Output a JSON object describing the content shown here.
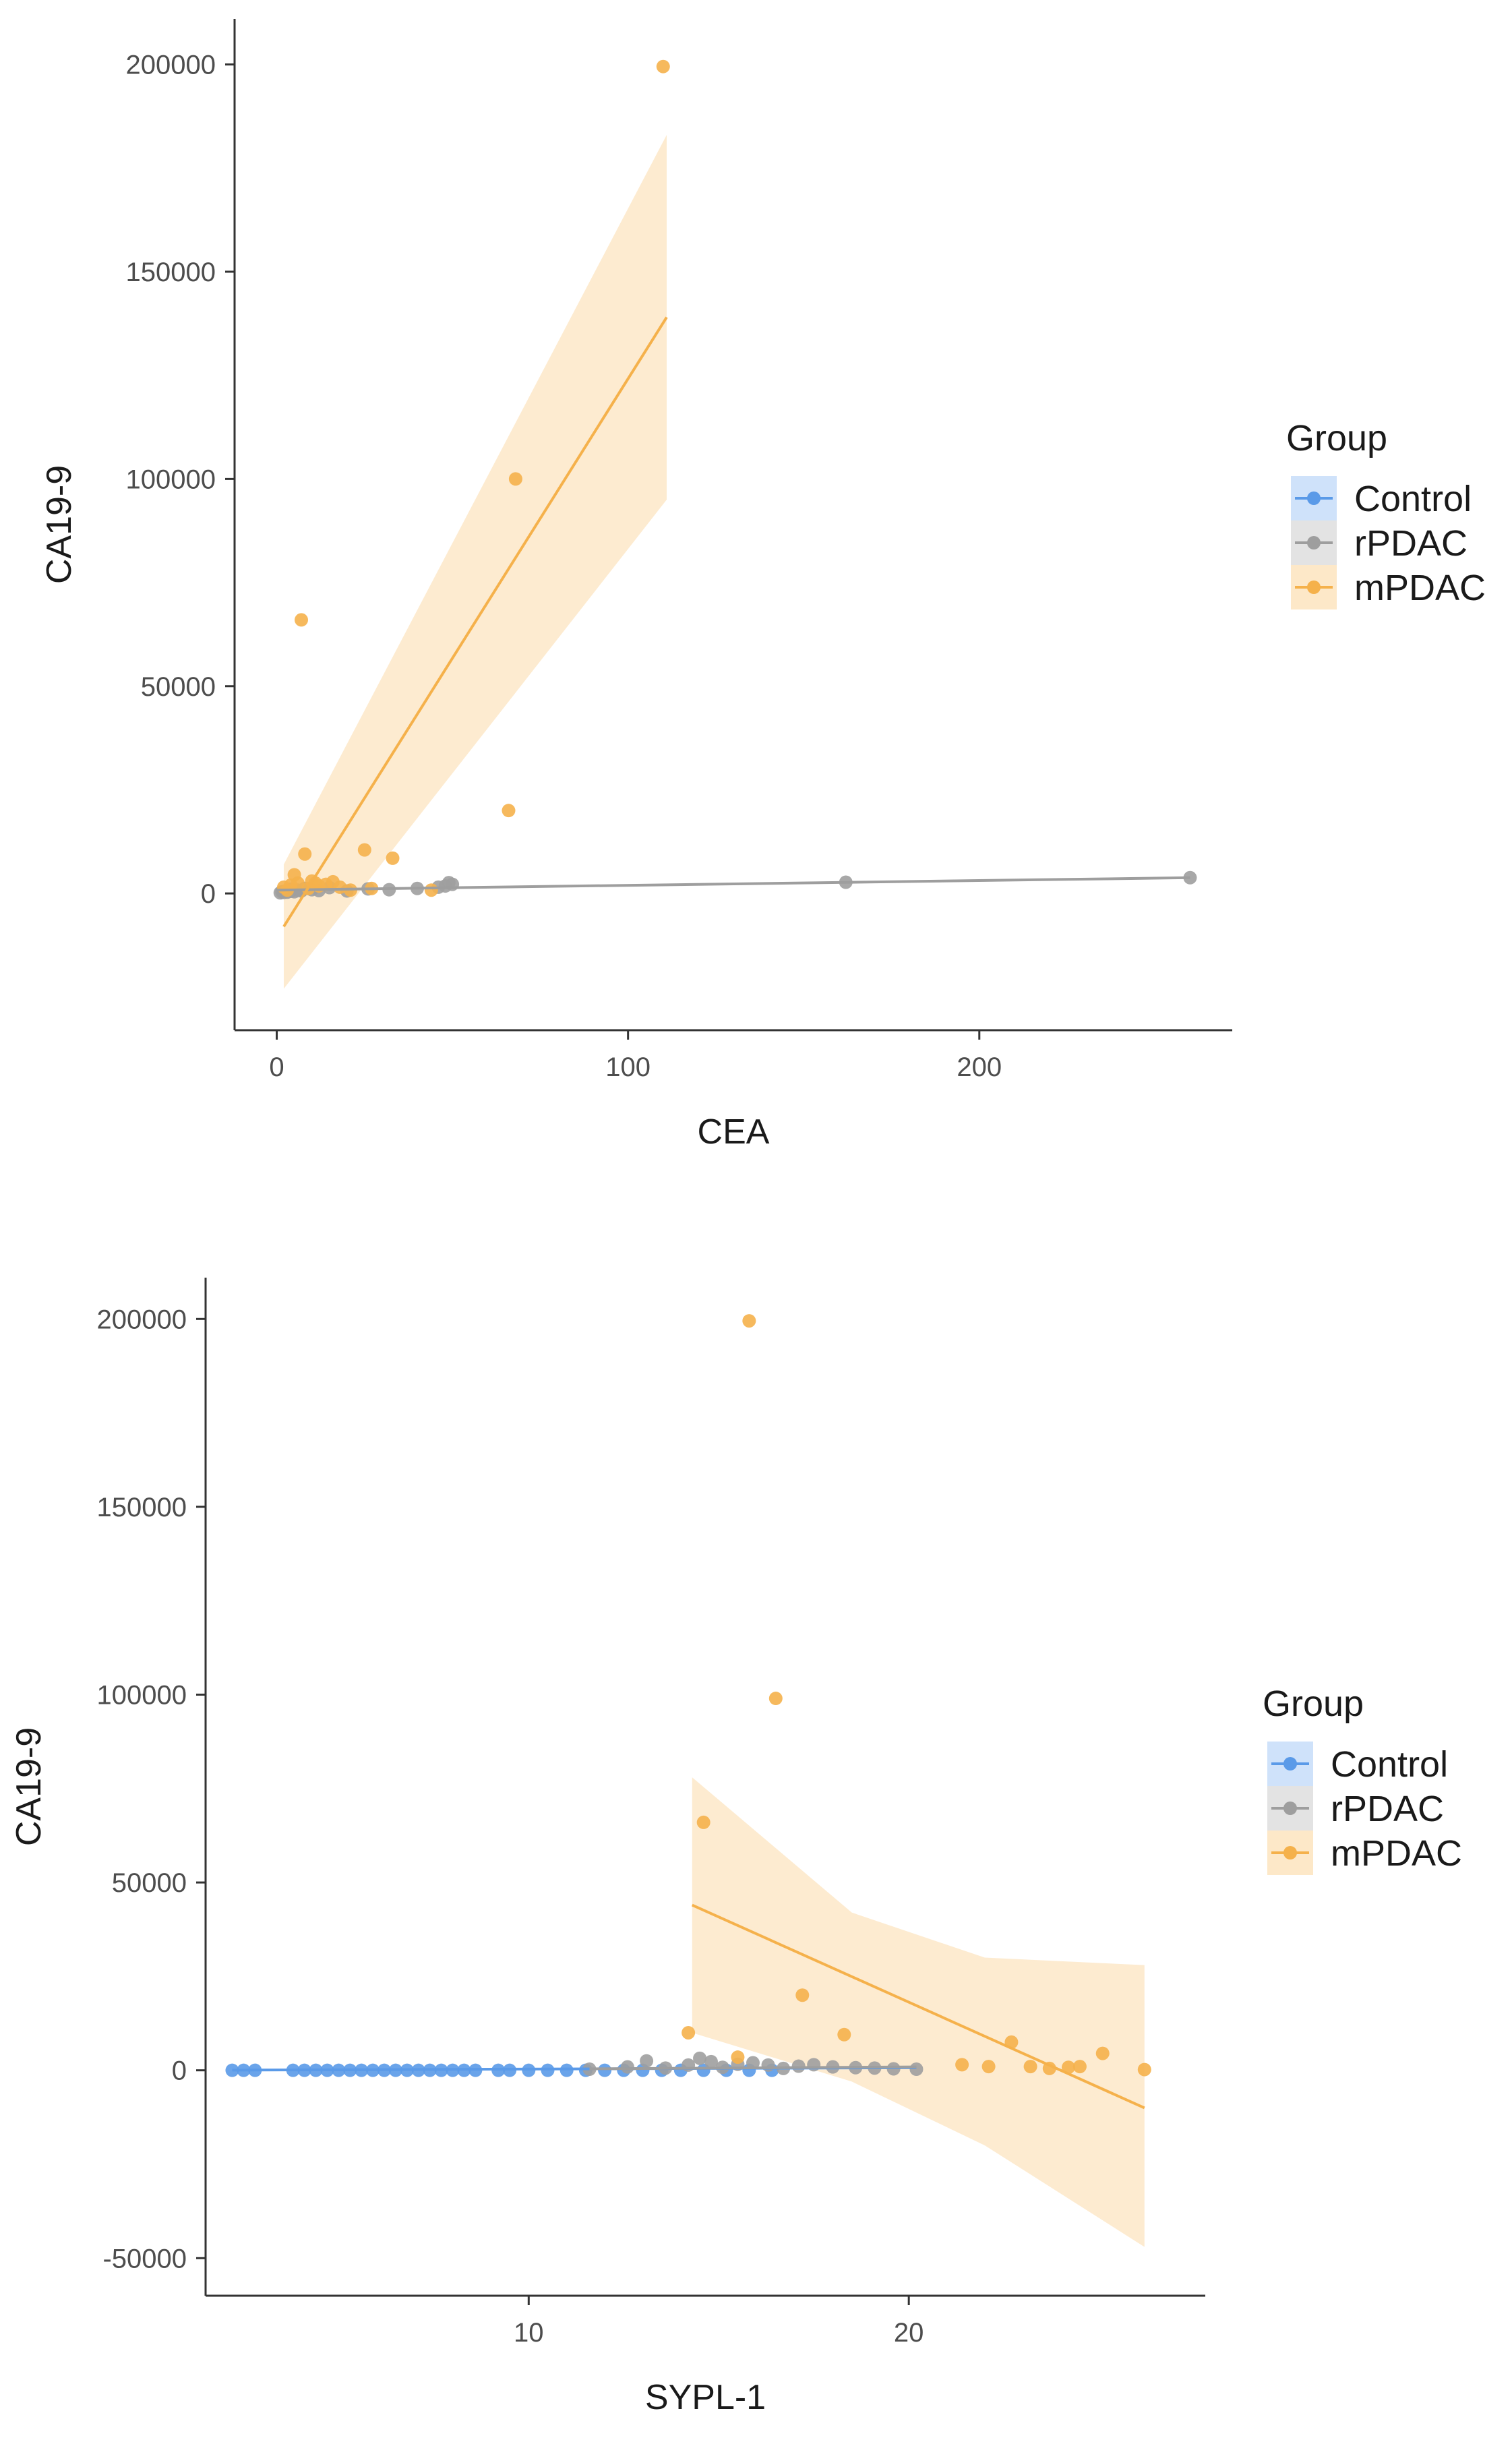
{
  "legend_title": "Group",
  "groups": [
    {
      "name": "Control",
      "color": "#5a9ae8",
      "band": "#cfe2fa"
    },
    {
      "name": "rPDAC",
      "color": "#9e9e9e",
      "band": "#e3e3e3"
    },
    {
      "name": "mPDAC",
      "color": "#f5b14b",
      "band": "#fde8c8"
    }
  ],
  "chart_data": [
    {
      "type": "scatter",
      "xlabel": "CEA",
      "ylabel": "CA19-9",
      "xlim": [
        -12,
        272
      ],
      "ylim": [
        -33000,
        211000
      ],
      "x_ticks": [
        0,
        100,
        200
      ],
      "y_ticks": [
        0,
        50000,
        100000,
        150000,
        200000
      ],
      "series": [
        {
          "name": "rPDAC",
          "points": [
            [
              1,
              150
            ],
            [
              1.5,
              400
            ],
            [
              2,
              250
            ],
            [
              2.5,
              600
            ],
            [
              3,
              300
            ],
            [
              3.5,
              700
            ],
            [
              4,
              500
            ],
            [
              4,
              1000
            ],
            [
              5,
              400
            ],
            [
              6,
              800
            ],
            [
              7,
              600
            ],
            [
              8,
              1200
            ],
            [
              10,
              900
            ],
            [
              12,
              700
            ],
            [
              15,
              1400
            ],
            [
              20,
              600
            ],
            [
              26,
              1100
            ],
            [
              32,
              900
            ],
            [
              40,
              1200
            ],
            [
              46,
              1500
            ],
            [
              48,
              1800
            ],
            [
              49,
              2600
            ],
            [
              50,
              2200
            ],
            [
              162,
              2700
            ],
            [
              260,
              3800
            ]
          ],
          "fit": {
            "x": [
              0,
              260
            ],
            "y": [
              800,
              3800
            ]
          }
        },
        {
          "name": "mPDAC",
          "points": [
            [
              2,
              1500
            ],
            [
              3,
              800
            ],
            [
              4,
              2000
            ],
            [
              5,
              4500
            ],
            [
              6,
              2500
            ],
            [
              7,
              66000
            ],
            [
              8,
              9500
            ],
            [
              9,
              1200
            ],
            [
              10,
              3000
            ],
            [
              11,
              2500
            ],
            [
              12,
              1800
            ],
            [
              14,
              2200
            ],
            [
              16,
              2800
            ],
            [
              18,
              1500
            ],
            [
              21,
              800
            ],
            [
              25,
              10500
            ],
            [
              27,
              1200
            ],
            [
              33,
              8500
            ],
            [
              44,
              800
            ],
            [
              66,
              20000
            ],
            [
              68,
              100000
            ],
            [
              110,
              199500
            ]
          ],
          "fit": {
            "x": [
              2,
              111
            ],
            "y": [
              -8000,
              139000
            ]
          },
          "band": {
            "x": [
              2,
              111
            ],
            "lower": [
              -23000,
              95000
            ],
            "upper": [
              7000,
              183000
            ]
          }
        }
      ]
    },
    {
      "type": "scatter",
      "xlabel": "SYPL-1",
      "ylabel": "CA19-9",
      "xlim": [
        1.5,
        27.8
      ],
      "ylim": [
        -60000,
        211000
      ],
      "x_ticks": [
        10,
        20
      ],
      "y_ticks": [
        -50000,
        0,
        50000,
        100000,
        150000,
        200000
      ],
      "series": [
        {
          "name": "Control",
          "points": [
            [
              2.2,
              0
            ],
            [
              2.5,
              0
            ],
            [
              2.8,
              0
            ],
            [
              3.8,
              0
            ],
            [
              4.1,
              0
            ],
            [
              4.4,
              0
            ],
            [
              4.7,
              0
            ],
            [
              5.0,
              0
            ],
            [
              5.3,
              0
            ],
            [
              5.6,
              0
            ],
            [
              5.9,
              0
            ],
            [
              6.2,
              0
            ],
            [
              6.5,
              0
            ],
            [
              6.8,
              0
            ],
            [
              7.1,
              0
            ],
            [
              7.4,
              0
            ],
            [
              7.7,
              0
            ],
            [
              8.0,
              0
            ],
            [
              8.3,
              0
            ],
            [
              8.6,
              0
            ],
            [
              9.2,
              0
            ],
            [
              9.5,
              0
            ],
            [
              10.0,
              0
            ],
            [
              10.5,
              0
            ],
            [
              11.0,
              0
            ],
            [
              11.5,
              0
            ],
            [
              12.0,
              0
            ],
            [
              12.5,
              0
            ],
            [
              13.0,
              0
            ],
            [
              13.5,
              0
            ],
            [
              14.0,
              0
            ],
            [
              14.6,
              0
            ],
            [
              15.2,
              0
            ],
            [
              15.8,
              0
            ],
            [
              16.4,
              0
            ]
          ],
          "fit": {
            "x": [
              2.2,
              20.2
            ],
            "y": [
              50,
              700
            ]
          }
        },
        {
          "name": "rPDAC",
          "points": [
            [
              11.6,
              300
            ],
            [
              12.6,
              900
            ],
            [
              13.1,
              2500
            ],
            [
              13.6,
              600
            ],
            [
              14.2,
              1400
            ],
            [
              14.5,
              3200
            ],
            [
              14.8,
              2300
            ],
            [
              15.1,
              800
            ],
            [
              15.5,
              1600
            ],
            [
              15.9,
              2000
            ],
            [
              16.3,
              1400
            ],
            [
              16.7,
              500
            ],
            [
              17.1,
              1100
            ],
            [
              17.5,
              1500
            ],
            [
              18.0,
              900
            ],
            [
              18.6,
              700
            ],
            [
              19.1,
              600
            ],
            [
              19.6,
              400
            ],
            [
              20.2,
              300
            ]
          ],
          "fit": {
            "x": [
              11.6,
              20.2
            ],
            "y": [
              400,
              900
            ]
          }
        },
        {
          "name": "mPDAC",
          "points": [
            [
              14.2,
              10000
            ],
            [
              14.6,
              66000
            ],
            [
              15.5,
              3500
            ],
            [
              15.8,
              199500
            ],
            [
              16.5,
              99000
            ],
            [
              17.2,
              20000
            ],
            [
              18.3,
              9500
            ],
            [
              21.4,
              1500
            ],
            [
              22.1,
              1000
            ],
            [
              22.7,
              7500
            ],
            [
              23.2,
              1000
            ],
            [
              23.7,
              500
            ],
            [
              24.2,
              800
            ],
            [
              24.5,
              1000
            ],
            [
              25.1,
              4500
            ],
            [
              26.2,
              200
            ]
          ],
          "fit": {
            "x": [
              14.3,
              26.2
            ],
            "y": [
              44000,
              -10000
            ]
          },
          "band": {
            "x": [
              14.3,
              18.5,
              22.0,
              26.2
            ],
            "lower": [
              10000,
              -3000,
              -20000,
              -47000
            ],
            "upper": [
              78000,
              42000,
              30000,
              28000
            ]
          }
        }
      ]
    }
  ]
}
